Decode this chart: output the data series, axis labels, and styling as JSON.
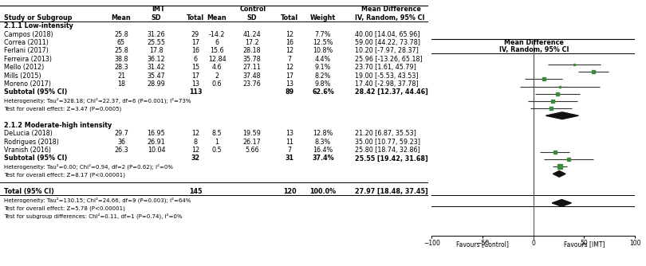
{
  "section1_label": "2.1.1 Low-intensity",
  "section2_label": "2.1.2 Moderate-high intensity",
  "studies_low": [
    {
      "name": "Campos (2018)",
      "imt_mean": "25.8",
      "imt_sd": "31.26",
      "imt_n": "29",
      "ctrl_mean": "-14.2",
      "ctrl_sd": "41.24",
      "ctrl_n": "12",
      "weight": "7.7%",
      "md": 40.0,
      "ci_lo": 14.04,
      "ci_hi": 65.96
    },
    {
      "name": "Correa (2011)",
      "imt_mean": "65",
      "imt_sd": "25.55",
      "imt_n": "17",
      "ctrl_mean": "6",
      "ctrl_sd": "17.2",
      "ctrl_n": "16",
      "weight": "12.5%",
      "md": 59.0,
      "ci_lo": 44.22,
      "ci_hi": 73.78
    },
    {
      "name": "Ferlani (2017)",
      "imt_mean": "25.8",
      "imt_sd": "17.8",
      "imt_n": "16",
      "ctrl_mean": "15.6",
      "ctrl_sd": "28.18",
      "ctrl_n": "12",
      "weight": "10.8%",
      "md": 10.2,
      "ci_lo": -7.97,
      "ci_hi": 28.37
    },
    {
      "name": "Ferreira (2013)",
      "imt_mean": "38.8",
      "imt_sd": "36.12",
      "imt_n": "6",
      "ctrl_mean": "12.84",
      "ctrl_sd": "35.78",
      "ctrl_n": "7",
      "weight": "4.4%",
      "md": 25.96,
      "ci_lo": -13.26,
      "ci_hi": 65.18
    },
    {
      "name": "Mello (2012)",
      "imt_mean": "28.3",
      "imt_sd": "31.42",
      "imt_n": "15",
      "ctrl_mean": "4.6",
      "ctrl_sd": "27.11",
      "ctrl_n": "12",
      "weight": "9.1%",
      "md": 23.7,
      "ci_lo": 1.61,
      "ci_hi": 45.79
    },
    {
      "name": "Mills (2015)",
      "imt_mean": "21",
      "imt_sd": "35.47",
      "imt_n": "17",
      "ctrl_mean": "2",
      "ctrl_sd": "37.48",
      "ctrl_n": "17",
      "weight": "8.2%",
      "md": 19.0,
      "ci_lo": -5.53,
      "ci_hi": 43.53
    },
    {
      "name": "Moreno (2017)",
      "imt_mean": "18",
      "imt_sd": "28.99",
      "imt_n": "13",
      "ctrl_mean": "0.6",
      "ctrl_sd": "23.76",
      "ctrl_n": "13",
      "weight": "9.8%",
      "md": 17.4,
      "ci_lo": -2.98,
      "ci_hi": 37.78
    }
  ],
  "subtotal_low": {
    "n_imt": "113",
    "n_ctrl": "89",
    "weight": "62.6%",
    "md": 28.42,
    "ci_lo": 12.37,
    "ci_hi": 44.46
  },
  "heterogeneity_low": "Heterogeneity: Tau²=328.18; Chi²=22.37, df=6 (P=0.001); I²=73%",
  "overall_low": "Test for overall effect: Z=3.47 (P=0.0005)",
  "studies_high": [
    {
      "name": "DeLucia (2018)",
      "imt_mean": "29.7",
      "imt_sd": "16.95",
      "imt_n": "12",
      "ctrl_mean": "8.5",
      "ctrl_sd": "19.59",
      "ctrl_n": "13",
      "weight": "12.8%",
      "md": 21.2,
      "ci_lo": 6.87,
      "ci_hi": 35.53
    },
    {
      "name": "Rodrigues (2018)",
      "imt_mean": "36",
      "imt_sd": "26.91",
      "imt_n": "8",
      "ctrl_mean": "1",
      "ctrl_sd": "26.17",
      "ctrl_n": "11",
      "weight": "8.3%",
      "md": 35.0,
      "ci_lo": 10.77,
      "ci_hi": 59.23
    },
    {
      "name": "Vranish (2016)",
      "imt_mean": "26.3",
      "imt_sd": "10.04",
      "imt_n": "12",
      "ctrl_mean": "0.5",
      "ctrl_sd": "5.66",
      "ctrl_n": "7",
      "weight": "16.4%",
      "md": 25.8,
      "ci_lo": 18.74,
      "ci_hi": 32.86
    }
  ],
  "subtotal_high": {
    "n_imt": "32",
    "n_ctrl": "31",
    "weight": "37.4%",
    "md": 25.55,
    "ci_lo": 19.42,
    "ci_hi": 31.68
  },
  "heterogeneity_high": "Heterogeneity: Tau²=0.00; Chi²=0.94, df=2 (P=0.62); I²=0%",
  "overall_high": "Test for overall effect: Z=8.17 (P<0.00001)",
  "total": {
    "n_imt": "145",
    "n_ctrl": "120",
    "weight": "100.0%",
    "md": 27.97,
    "ci_lo": 18.48,
    "ci_hi": 37.45
  },
  "heterogeneity_total": "Heterogeneity: Tau²=130.15; Chi²=24.66, df=9 (P=0.003); I²=64%",
  "overall_total": "Test for overall effect: Z=5.78 (P<0.00001)",
  "subgroup_diff": "Test for subgroup differences: Chi²=0.11, df=1 (P=0.74), I²=0%",
  "xmin": -100,
  "xmax": 100,
  "xticks": [
    -100,
    -50,
    0,
    50,
    100
  ],
  "xlabel_left": "Favours [Control]",
  "xlabel_right": "Favours [IMT]",
  "marker_color": "#3a8c3a",
  "diamond_color": "#111111",
  "line_color": "#333333"
}
